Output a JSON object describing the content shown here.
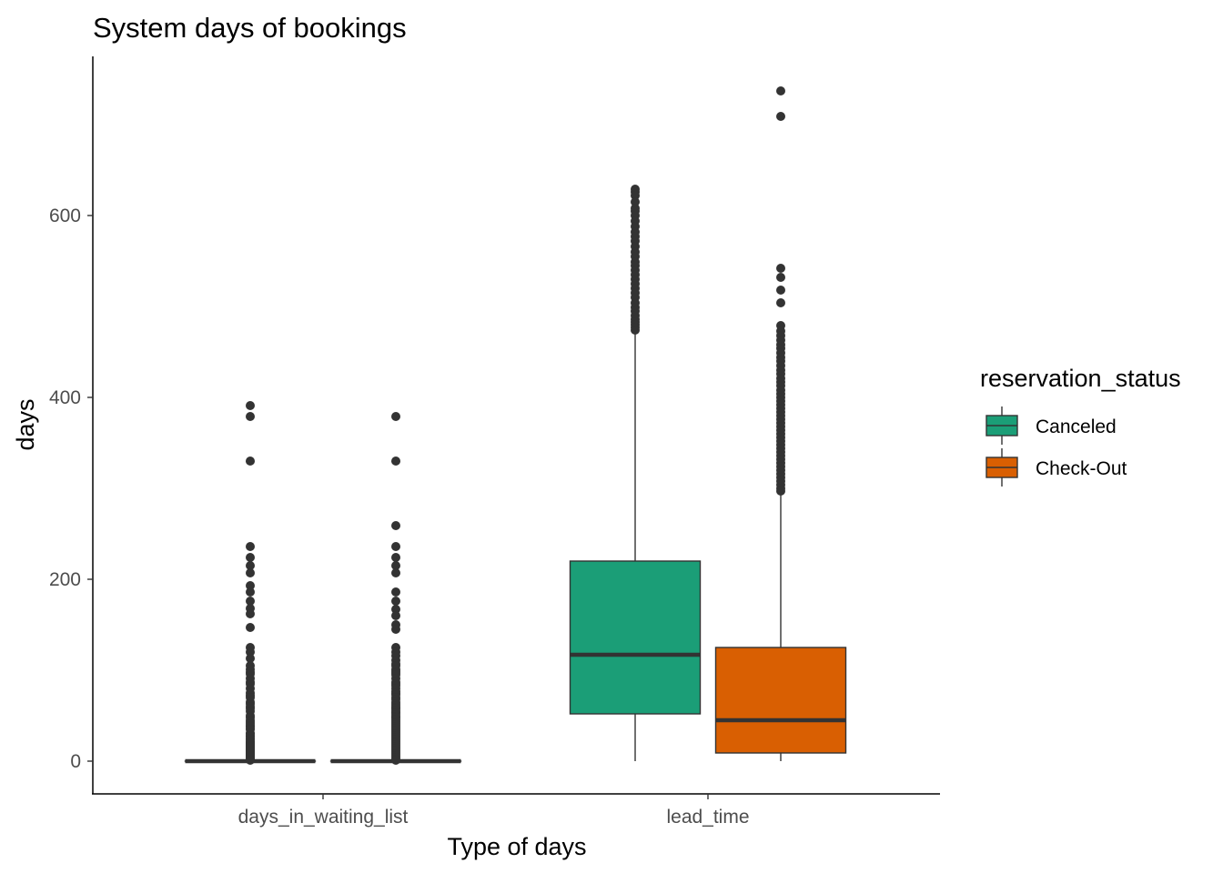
{
  "chart_data": {
    "type": "box",
    "title": "System days of bookings",
    "xlabel": "Type of days",
    "ylabel": "days",
    "categories": [
      "days_in_waiting_list",
      "lead_time"
    ],
    "yticks": [
      0,
      200,
      400,
      600
    ],
    "ylim": [
      -35,
      775
    ],
    "grid": false,
    "legend": {
      "title": "reservation_status",
      "position": "right",
      "entries": [
        "Canceled",
        "Check-Out"
      ]
    },
    "series": [
      {
        "name": "Canceled",
        "color": "#1b9e77",
        "boxes": [
          {
            "category": "days_in_waiting_list",
            "whisker_low": 0,
            "q1": 0,
            "median": 0,
            "q3": 0,
            "whisker_high": 0,
            "outliers": [
              391,
              379,
              330,
              236,
              224,
              215,
              207,
              193,
              186,
              176,
              168,
              162,
              147,
              125,
              120,
              113,
              105,
              101,
              98,
              96,
              91,
              87,
              85,
              80,
              75,
              72,
              70,
              65,
              63,
              60,
              58,
              55,
              50,
              48,
              45,
              43,
              41,
              39,
              38,
              36,
              35,
              31,
              30,
              28,
              27,
              25,
              24,
              22,
              21,
              20,
              19,
              18,
              17,
              16,
              15,
              14,
              13,
              12,
              11,
              10,
              9,
              8,
              7,
              6,
              5,
              4,
              3,
              2,
              1
            ]
          },
          {
            "category": "lead_time",
            "whisker_low": 0,
            "q1": 52,
            "median": 117,
            "q3": 220,
            "whisker_high": 472,
            "outliers": [
              629,
              626,
              622,
              615,
              608,
              605,
              600,
              594,
              588,
              582,
              577,
              572,
              566,
              560,
              555,
              549,
              545,
              540,
              535,
              530,
              525,
              520,
              515,
              510,
              504,
              499,
              495,
              490,
              486,
              483,
              480,
              477,
              474
            ]
          }
        ]
      },
      {
        "name": "Check-Out",
        "color": "#d95f02",
        "boxes": [
          {
            "category": "days_in_waiting_list",
            "whisker_low": 0,
            "q1": 0,
            "median": 0,
            "q3": 0,
            "whisker_high": 0,
            "outliers": [
              379,
              330,
              259,
              236,
              224,
              215,
              207,
              186,
              176,
              167,
              160,
              150,
              145,
              125,
              120,
              116,
              111,
              107,
              105,
              101,
              99,
              97,
              95,
              91,
              87,
              85,
              83,
              80,
              77,
              75,
              73,
              70,
              68,
              65,
              63,
              61,
              59,
              58,
              56,
              54,
              53,
              51,
              49,
              48,
              46,
              44,
              42,
              40,
              38,
              36,
              34,
              32,
              30,
              28,
              26,
              24,
              22,
              20,
              18,
              16,
              14,
              12,
              10,
              8,
              6,
              4,
              2,
              1
            ]
          },
          {
            "category": "lead_time",
            "whisker_low": 0,
            "q1": 9,
            "median": 45,
            "q3": 125,
            "whisker_high": 293,
            "outliers": [
              737,
              709,
              542,
              532,
              518,
              504,
              479,
              473,
              468,
              463,
              458,
              454,
              449,
              444,
              440,
              435,
              430,
              426,
              421,
              417,
              413,
              408,
              404,
              400,
              396,
              392,
              388,
              384,
              380,
              376,
              372,
              368,
              364,
              360,
              356,
              352,
              348,
              344,
              340,
              336,
              332,
              328,
              324,
              320,
              316,
              312,
              308,
              304,
              300,
              297
            ]
          }
        ]
      }
    ]
  }
}
